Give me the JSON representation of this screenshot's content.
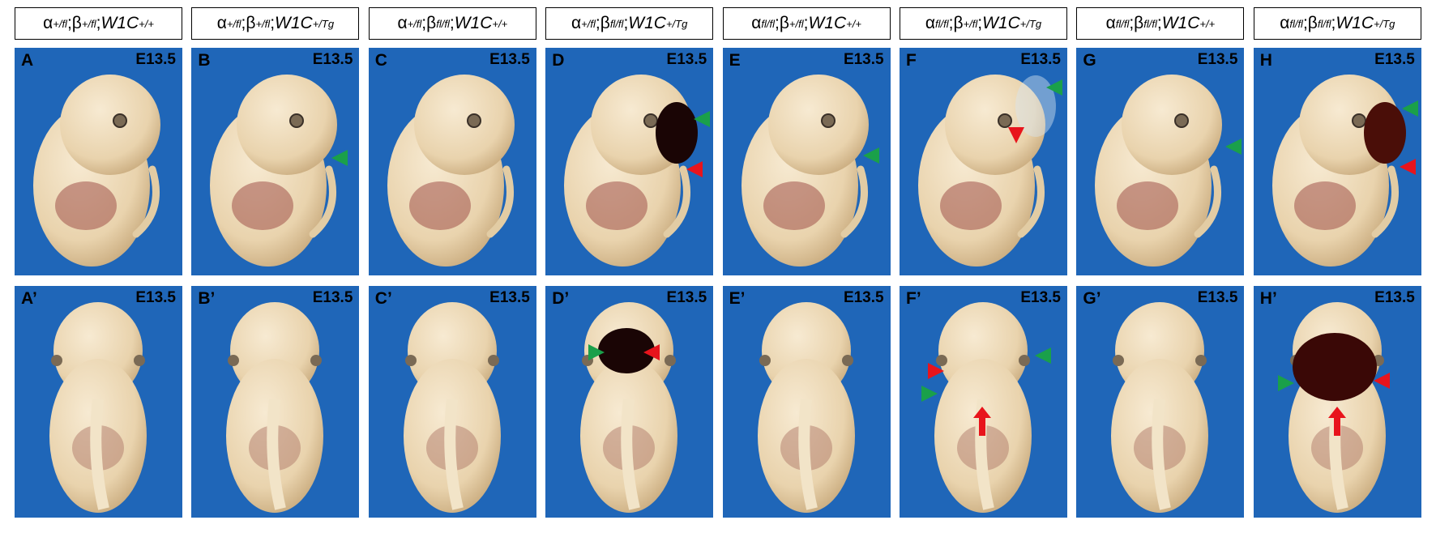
{
  "columns": [
    {
      "genotype": [
        {
          "text": "α"
        },
        {
          "superscript": "+/fl"
        },
        {
          "text": ";β"
        },
        {
          "superscript": "+/fl"
        },
        {
          "text": ";"
        },
        {
          "italic": "W1C"
        },
        {
          "superscript": "+/+"
        }
      ],
      "lateral": {
        "label": "A",
        "stage": "E13.5"
      },
      "frontal": {
        "label": "A’",
        "stage": "E13.5"
      }
    },
    {
      "genotype": [
        {
          "text": "α"
        },
        {
          "superscript": "+/fl"
        },
        {
          "text": ";β"
        },
        {
          "superscript": "+/fl"
        },
        {
          "text": ";"
        },
        {
          "italic": "W1C"
        },
        {
          "superscript": "+/Tg"
        }
      ],
      "lateral": {
        "label": "B",
        "stage": "E13.5"
      },
      "frontal": {
        "label": "B’",
        "stage": "E13.5"
      }
    },
    {
      "genotype": [
        {
          "text": "α"
        },
        {
          "superscript": "+/fl"
        },
        {
          "text": ";β"
        },
        {
          "superscript": "fl/fl"
        },
        {
          "text": ";"
        },
        {
          "italic": "W1C"
        },
        {
          "superscript": "+/+"
        }
      ],
      "lateral": {
        "label": "C",
        "stage": "E13.5"
      },
      "frontal": {
        "label": "C’",
        "stage": "E13.5"
      }
    },
    {
      "genotype": [
        {
          "text": "α"
        },
        {
          "superscript": "+/fl"
        },
        {
          "text": ";β"
        },
        {
          "superscript": "fl/fl"
        },
        {
          "text": ";"
        },
        {
          "italic": "W1C"
        },
        {
          "superscript": "+/Tg"
        }
      ],
      "lateral": {
        "label": "D",
        "stage": "E13.5"
      },
      "frontal": {
        "label": "D’",
        "stage": "E13.5"
      }
    },
    {
      "genotype": [
        {
          "text": "α"
        },
        {
          "superscript": "fl/fl"
        },
        {
          "text": ";β"
        },
        {
          "superscript": "+/fl"
        },
        {
          "text": ";"
        },
        {
          "italic": "W1C"
        },
        {
          "superscript": "+/+"
        }
      ],
      "lateral": {
        "label": "E",
        "stage": "E13.5"
      },
      "frontal": {
        "label": "E’",
        "stage": "E13.5"
      }
    },
    {
      "genotype": [
        {
          "text": "α"
        },
        {
          "superscript": "fl/fl"
        },
        {
          "text": ";β"
        },
        {
          "superscript": "+/fl"
        },
        {
          "text": ";"
        },
        {
          "italic": "W1C"
        },
        {
          "superscript": "+/Tg"
        }
      ],
      "lateral": {
        "label": "F",
        "stage": "E13.5"
      },
      "frontal": {
        "label": "F’",
        "stage": "E13.5"
      }
    },
    {
      "genotype": [
        {
          "text": "α"
        },
        {
          "superscript": "fl/fl"
        },
        {
          "text": ";β"
        },
        {
          "superscript": "fl/fl"
        },
        {
          "text": ";"
        },
        {
          "italic": "W1C"
        },
        {
          "superscript": "+/+"
        }
      ],
      "lateral": {
        "label": "G",
        "stage": "E13.5"
      },
      "frontal": {
        "label": "G’",
        "stage": "E13.5"
      }
    },
    {
      "genotype": [
        {
          "text": "α"
        },
        {
          "superscript": "fl/fl"
        },
        {
          "text": ";β"
        },
        {
          "superscript": "fl/fl"
        },
        {
          "text": ";"
        },
        {
          "italic": "W1C"
        },
        {
          "superscript": "+/Tg"
        }
      ],
      "lateral": {
        "label": "H",
        "stage": "E13.5"
      },
      "frontal": {
        "label": "H’",
        "stage": "E13.5"
      }
    }
  ]
}
